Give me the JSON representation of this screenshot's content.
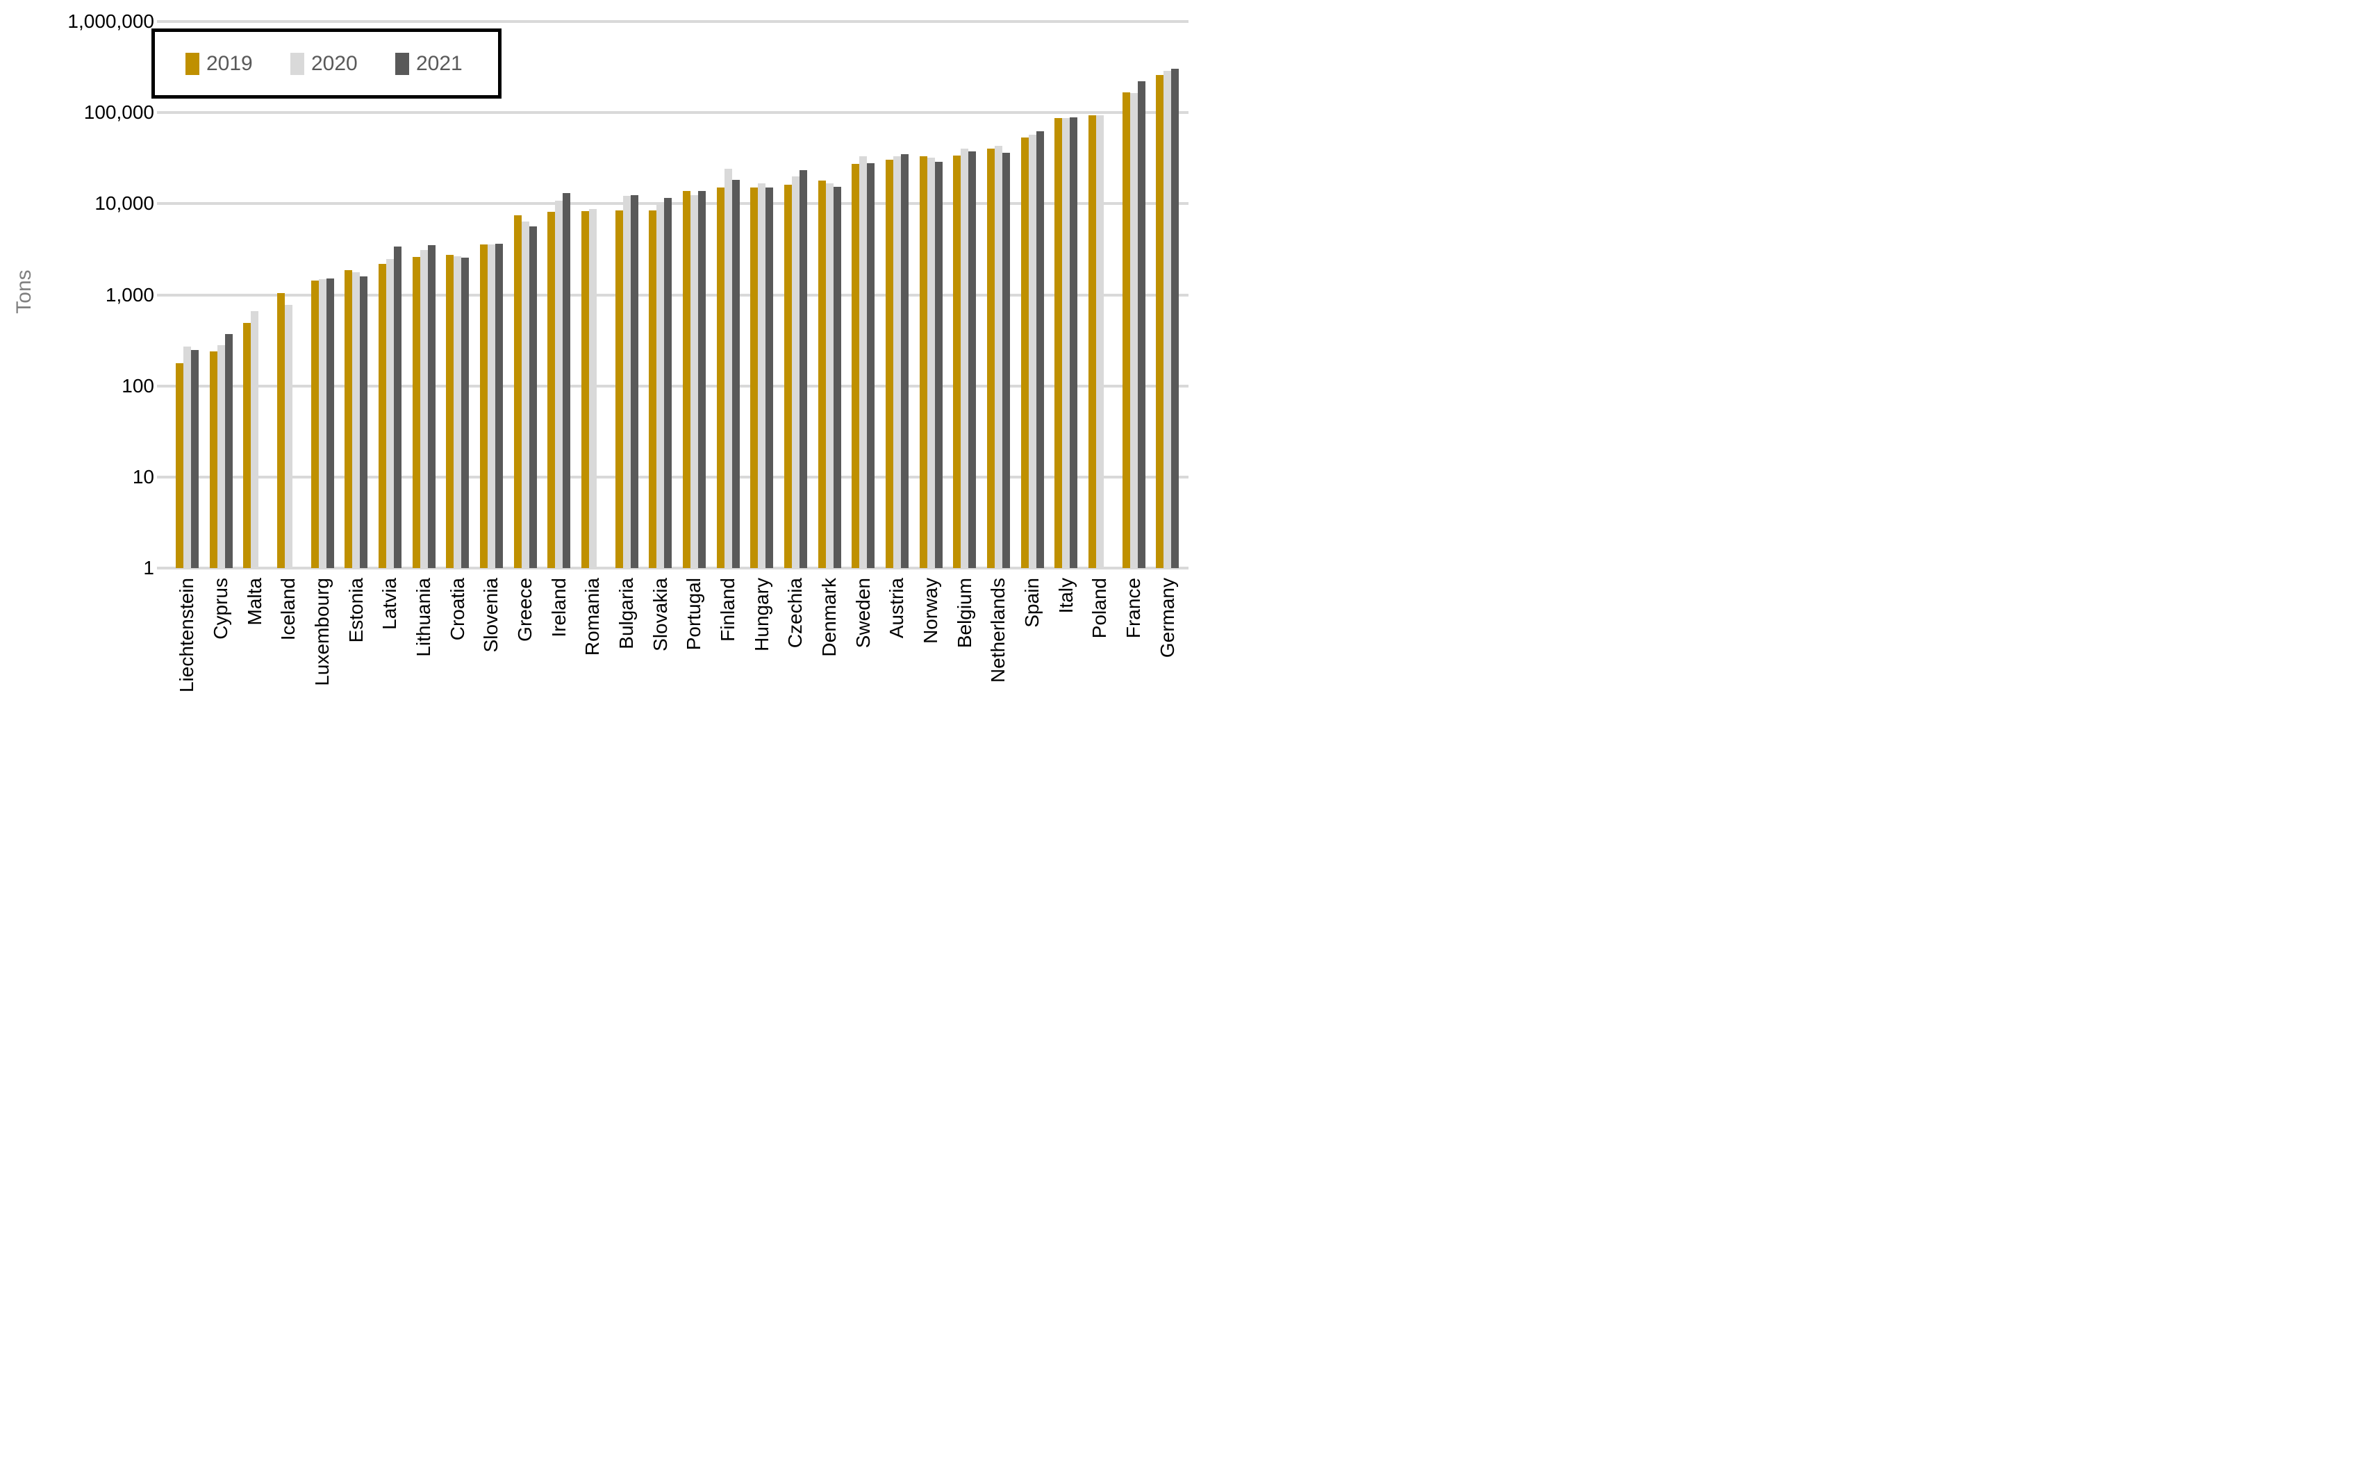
{
  "y_axis": {
    "label": "Tons",
    "ticks": [
      "1,000,000",
      "100,000",
      "10,000",
      "1,000",
      "100",
      "10",
      "1"
    ]
  },
  "legend": {
    "items": [
      {
        "label": "2019",
        "color": "#BF9000"
      },
      {
        "label": "2020",
        "color": "#D9D9D9"
      },
      {
        "label": "2021",
        "color": "#595959"
      }
    ]
  },
  "colors": {
    "grid": "#D9D9D9",
    "tick_text": "#000000",
    "y_title_text": "#808080",
    "legend_text": "#595959",
    "background": "#FFFFFF"
  },
  "chart_data": {
    "type": "bar",
    "scale": "log",
    "ylabel": "Tons",
    "ylim": [
      1,
      1000000
    ],
    "grid": true,
    "legend_position": "top-left",
    "categories": [
      "Liechtenstein",
      "Cyprus",
      "Malta",
      "Iceland",
      "Luxembourg",
      "Estonia",
      "Latvia",
      "Lithuania",
      "Croatia",
      "Slovenia",
      "Greece",
      "Ireland",
      "Romania",
      "Bulgaria",
      "Slovakia",
      "Portugal",
      "Finland",
      "Hungary",
      "Czechia",
      "Denmark",
      "Sweden",
      "Austria",
      "Norway",
      "Belgium",
      "Netherlands",
      "Spain",
      "Italy",
      "Poland",
      "France",
      "Germany"
    ],
    "series": [
      {
        "name": "2019",
        "color": "#BF9000",
        "values": [
          176,
          241,
          490,
          1045,
          1430,
          1850,
          2170,
          2600,
          2720,
          3590,
          7480,
          8120,
          8350,
          8400,
          8440,
          13700,
          15000,
          15000,
          16300,
          18000,
          27400,
          30500,
          33400,
          33800,
          40000,
          53700,
          86600,
          93700,
          168000,
          258000
        ]
      },
      {
        "name": "2020",
        "color": "#D9D9D9",
        "values": [
          272,
          278,
          665,
          780,
          1490,
          1780,
          2460,
          3110,
          2650,
          3540,
          6390,
          10850,
          8790,
          12200,
          9800,
          12400,
          24400,
          16800,
          19800,
          16600,
          32900,
          33200,
          32300,
          40500,
          43000,
          57200,
          87000,
          93300,
          164000,
          290000
        ]
      },
      {
        "name": "2021",
        "color": "#595959",
        "values": [
          246,
          368,
          null,
          null,
          1510,
          1590,
          3370,
          3490,
          2560,
          3610,
          5670,
          13000,
          null,
          12500,
          11580,
          13900,
          18300,
          14950,
          23200,
          15200,
          27900,
          34900,
          29000,
          37500,
          36500,
          62000,
          88800,
          null,
          220000,
          301000
        ]
      }
    ]
  }
}
